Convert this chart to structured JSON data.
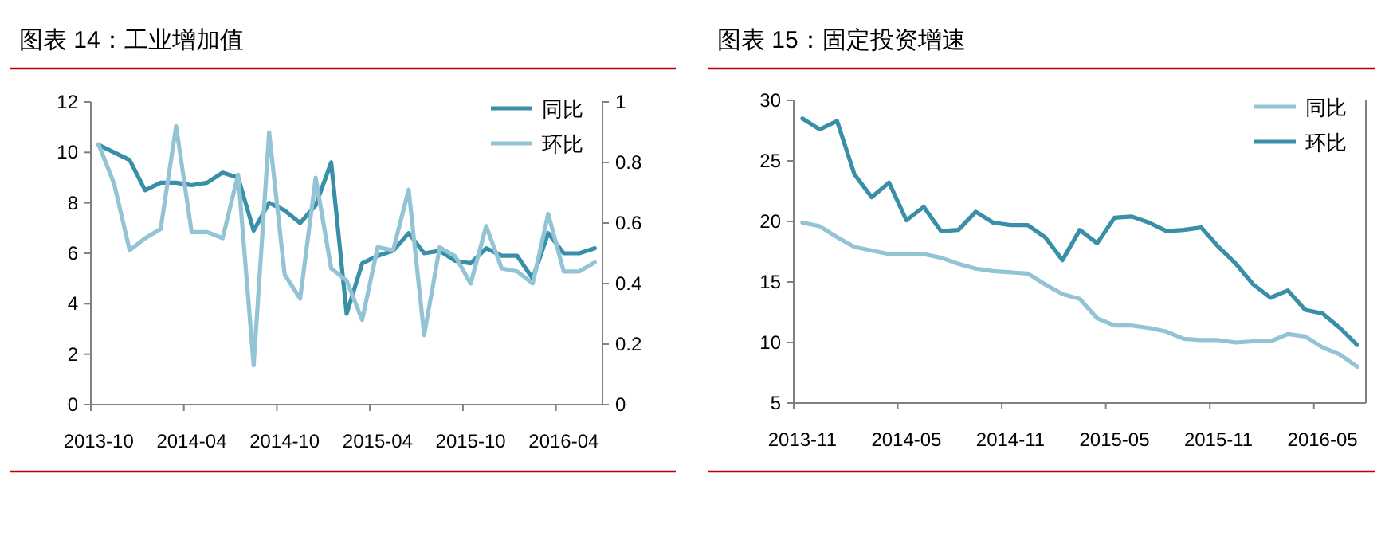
{
  "chart_data": [
    {
      "type": "line",
      "title": "图表 14：工业增加值",
      "categories": [
        "2013-10",
        null,
        null,
        null,
        null,
        null,
        "2014-04",
        null,
        null,
        null,
        null,
        null,
        "2014-10",
        null,
        null,
        null,
        null,
        null,
        "2015-04",
        null,
        null,
        null,
        null,
        null,
        "2015-10",
        null,
        null,
        null,
        null,
        null,
        "2016-04",
        null,
        null
      ],
      "ylim": [
        0,
        12
      ],
      "yticks": [
        0,
        2,
        4,
        6,
        8,
        10,
        12
      ],
      "y2lim": [
        0,
        1
      ],
      "y2ticks": [
        0,
        0.2,
        0.4,
        0.6,
        0.8,
        1
      ],
      "legend": "top right",
      "grid": false,
      "series": [
        {
          "name": "同比",
          "color": "#3a8fa8",
          "values": [
            10.3,
            10.0,
            9.7,
            8.5,
            8.8,
            8.8,
            8.7,
            8.8,
            9.2,
            9.0,
            6.9,
            8.0,
            7.7,
            7.2,
            7.9,
            9.6,
            3.6,
            5.6,
            5.9,
            6.1,
            6.8,
            6.0,
            6.1,
            5.7,
            5.6,
            6.2,
            5.9,
            5.9,
            5.0,
            6.8,
            6.0,
            6.0,
            6.2
          ]
        },
        {
          "name": "环比",
          "color": "#92c4d6",
          "axis": "y2",
          "values": [
            0.86,
            0.73,
            0.51,
            0.55,
            0.58,
            0.92,
            0.57,
            0.57,
            0.55,
            0.76,
            0.13,
            0.9,
            0.43,
            0.35,
            0.75,
            0.45,
            0.41,
            0.28,
            0.52,
            0.51,
            0.71,
            0.23,
            0.52,
            0.49,
            0.4,
            0.59,
            0.45,
            0.44,
            0.4,
            0.63,
            0.44,
            0.44,
            0.47
          ]
        }
      ]
    },
    {
      "type": "line",
      "title": "图表 15：固定投资增速",
      "categories": [
        "2013-11",
        null,
        null,
        null,
        null,
        null,
        "2014-05",
        null,
        null,
        null,
        null,
        null,
        "2014-11",
        null,
        null,
        null,
        null,
        null,
        "2015-05",
        null,
        null,
        null,
        null,
        null,
        "2015-11",
        null,
        null,
        null,
        null,
        null,
        "2016-05",
        null,
        null
      ],
      "ylim": [
        5,
        30
      ],
      "yticks": [
        5,
        10,
        15,
        20,
        25,
        30
      ],
      "legend": "top right",
      "grid": false,
      "series": [
        {
          "name": "同比",
          "color": "#92c4d6",
          "values": [
            19.9,
            19.6,
            18.7,
            17.9,
            17.6,
            17.3,
            17.3,
            17.3,
            17.0,
            16.5,
            16.1,
            15.9,
            15.8,
            15.7,
            14.8,
            14.0,
            13.6,
            12.0,
            11.4,
            11.4,
            11.2,
            10.9,
            10.3,
            10.2,
            10.2,
            10.0,
            10.1,
            10.1,
            10.7,
            10.5,
            9.6,
            9.0,
            8.0
          ]
        },
        {
          "name": "环比",
          "color": "#3a8fa8",
          "values": [
            28.5,
            27.6,
            28.3,
            23.9,
            22.0,
            23.2,
            20.1,
            21.2,
            19.2,
            19.3,
            20.8,
            19.9,
            19.7,
            19.7,
            18.7,
            16.8,
            19.3,
            18.2,
            20.3,
            20.4,
            19.9,
            19.2,
            19.3,
            19.5,
            17.9,
            16.5,
            14.8,
            13.7,
            14.3,
            12.7,
            12.4,
            11.2,
            9.8
          ]
        }
      ]
    }
  ]
}
